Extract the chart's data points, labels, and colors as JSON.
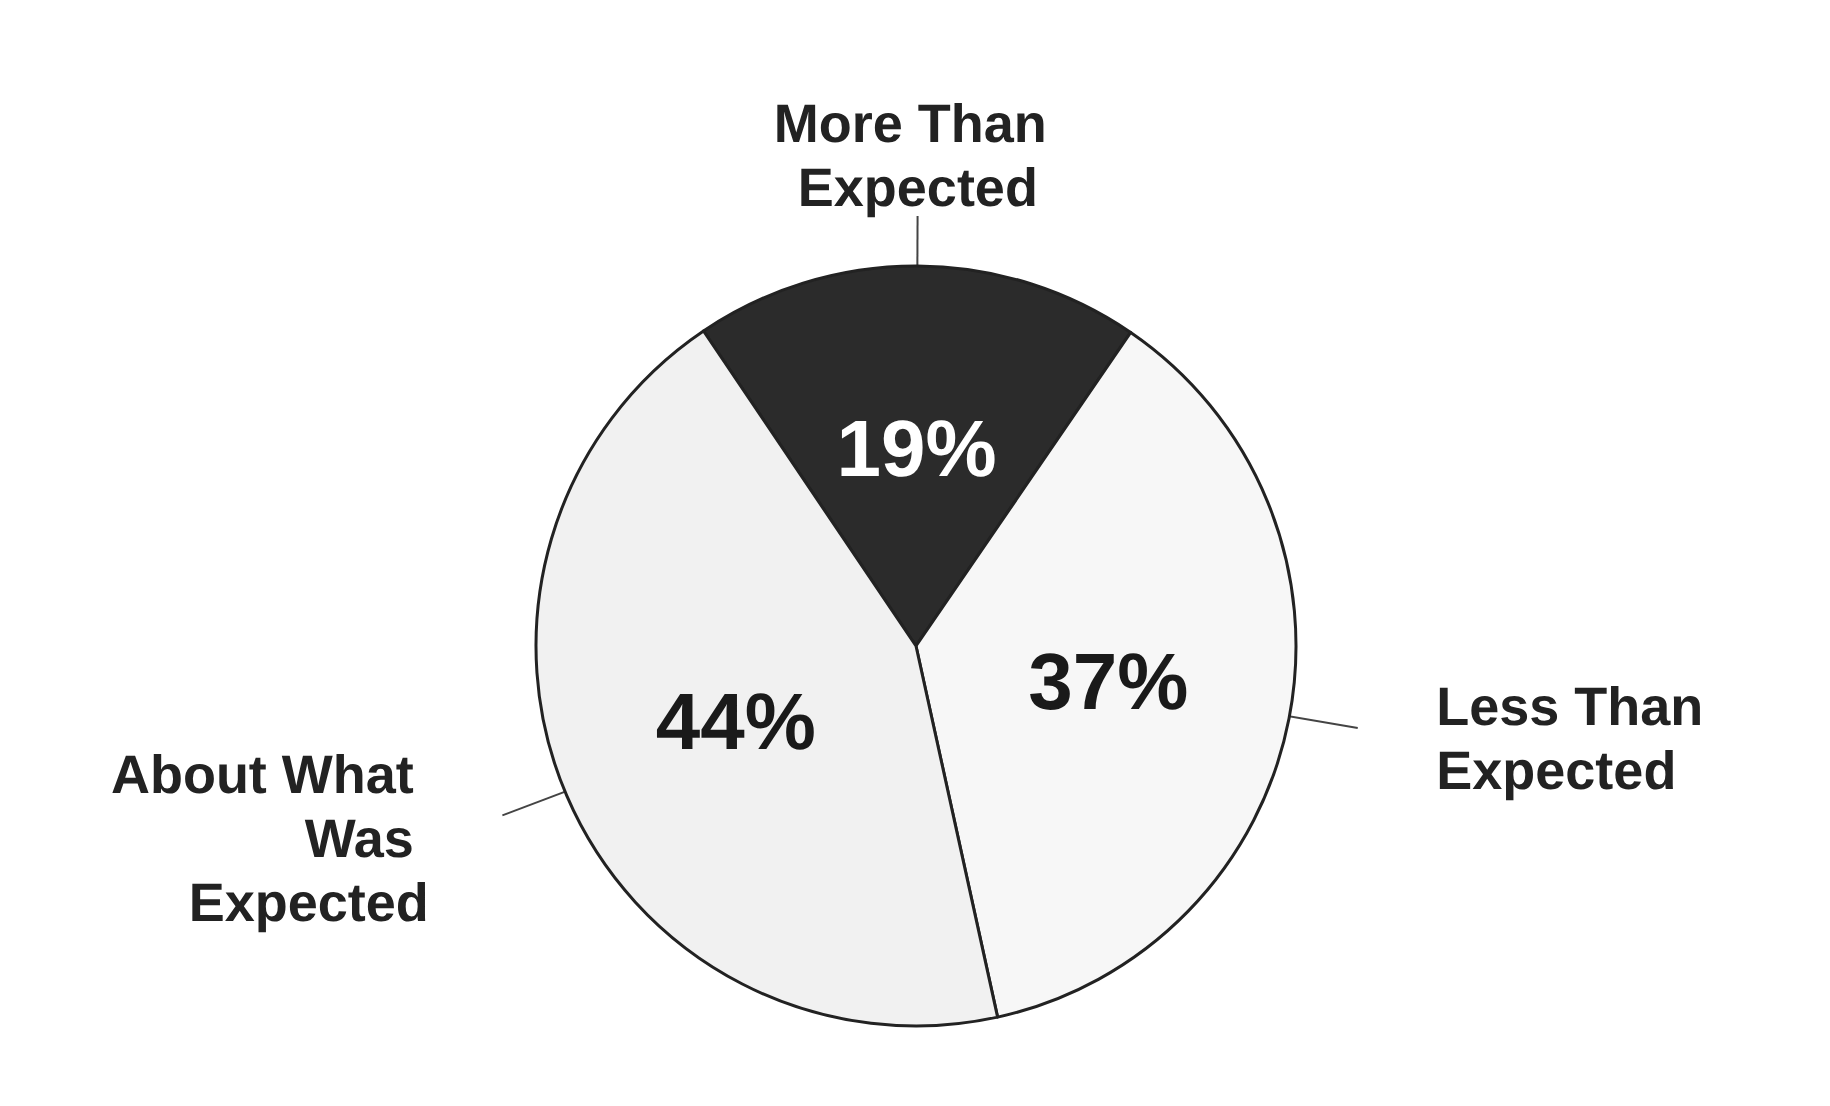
{
  "chart_data": {
    "type": "pie",
    "categories": [
      "More Than Expected",
      "Less Than Expected",
      "About What Was Expected"
    ],
    "values": [
      19,
      37,
      44
    ],
    "colors": [
      "#2b2b2b",
      "#f7f7f7",
      "#f1f1f1"
    ],
    "value_labels": [
      "19%",
      "37%",
      "44%"
    ]
  }
}
